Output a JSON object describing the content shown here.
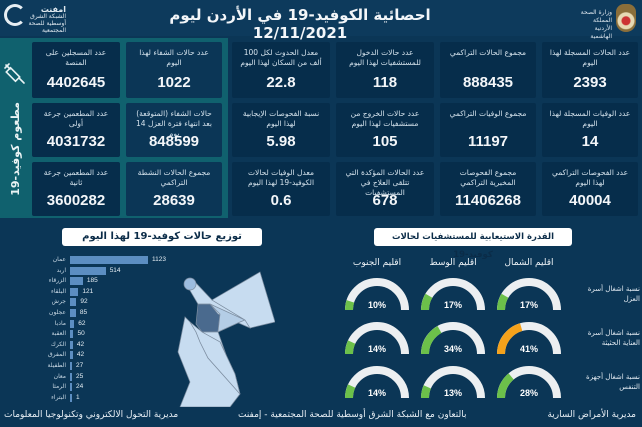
{
  "header": {
    "title": "احصائية الكوفيد-19 في الأردن ليوم 12/11/2021",
    "ministry_line1": "وزارة الصحة",
    "ministry_line2": "المملكة الأردنية الهاشمية",
    "emphnet_name": "امفنت",
    "emphnet_sub": "الشبكة الشرق أوسطية للصحة المجتمعية"
  },
  "vaccination": {
    "side_label": "مطعوم كوفيد-19",
    "cards": [
      {
        "label": "عدد المسجلين على المنصة",
        "value": "4402645"
      },
      {
        "label": "عدد المطعمين جرعة أولى",
        "value": "4031732"
      },
      {
        "label": "عدد المطعمين جرعة ثانية",
        "value": "3600282"
      }
    ]
  },
  "stats": {
    "col_recovery": [
      {
        "label": "عدد حالات الشفاء لهذا اليوم",
        "value": "1022"
      },
      {
        "label": "حالات الشفاء (المتوقعة) بعد انتهاء فترة العزل 14 يوم",
        "value": "848599"
      },
      {
        "label": "مجموع الحالات النشطة التراكمي",
        "value": "28639"
      }
    ],
    "col_rates": [
      {
        "label": "معدل الحدوث لكل 100 ألف من السكان لهذا اليوم",
        "value": "22.8"
      },
      {
        "label": "نسبة الفحوصات الإيجابية لهذا اليوم",
        "value": "5.98"
      },
      {
        "label": "معدل الوفيات لحالات الكوفيد-19 لهذا اليوم",
        "value": "0.6"
      }
    ],
    "col_hospital": [
      {
        "label": "عدد حالات الدخول للمستشفيات لهذا اليوم",
        "value": "118"
      },
      {
        "label": "عدد حالات الخروج من مستشفيات لهذا اليوم",
        "value": "105"
      },
      {
        "label": "عدد الحالات المؤكدة التي تتلقى العلاج في المستشفيات",
        "value": "678"
      }
    ],
    "col_cumulative": [
      {
        "label": "مجموع الحالات التراكمي",
        "value": "888435"
      },
      {
        "label": "مجموع الوفيات التراكمي",
        "value": "11197"
      },
      {
        "label": "مجموع الفحوصات المخبرية التراكمي",
        "value": "11406268"
      }
    ],
    "col_today": [
      {
        "label": "عدد الحالات المسجلة لهذا اليوم",
        "value": "2393"
      },
      {
        "label": "عدد الوفيات المسجلة لهذا اليوم",
        "value": "14"
      },
      {
        "label": "عدد الفحوصات التراكمي لهذا اليوم",
        "value": "40004"
      }
    ]
  },
  "distribution": {
    "title": "توزيع حالات كوفيد-19 لهذا اليوم",
    "bar_color": "#5c8ec2"
  },
  "capacity": {
    "title": "القدرة الاستيعابية للمستشفيات لحالات كوفيد-19",
    "regions": [
      "اقليم الشمال",
      "اقليم الوسط",
      "اقليم الجنوب"
    ],
    "rows": [
      {
        "label": "نسبة اشغال أسرة العزل",
        "values": [
          "17%",
          "17%",
          "10%"
        ]
      },
      {
        "label": "نسبة اشغال أسرة العناية الحثيثة",
        "values": [
          "41%",
          "34%",
          "14%"
        ]
      },
      {
        "label": "نسبة اشغال أجهزة التنفس",
        "values": [
          "28%",
          "13%",
          "14%"
        ]
      }
    ],
    "colors": {
      "normal": "#6cc04a",
      "warning": "#f5a21b",
      "track": "#eceff1"
    }
  },
  "footer": {
    "left": "مديرية التحول الالكتروني وتكنولوجيا المعلومات",
    "center": "بالتعاون مع الشبكة الشرق أوسطية للصحة المجتمعية - إمفنت",
    "right": "مديرية الأمراض السارية"
  },
  "chart_data": {
    "type": "bar",
    "title": "توزيع حالات كوفيد-19 لهذا اليوم",
    "orientation": "horizontal",
    "categories": [
      "عمان",
      "اربد",
      "الزرقاء",
      "البلقاء",
      "جرش",
      "عجلون",
      "مادبا",
      "العقبة",
      "الكرك",
      "المفرق",
      "الطفيلة",
      "معان",
      "الرمثا",
      "البتراء"
    ],
    "values": [
      1123,
      514,
      185,
      121,
      92,
      85,
      62,
      50,
      42,
      42,
      27,
      25,
      24,
      1
    ],
    "xlabel": "",
    "ylabel": "",
    "grid": false,
    "legend": null
  }
}
